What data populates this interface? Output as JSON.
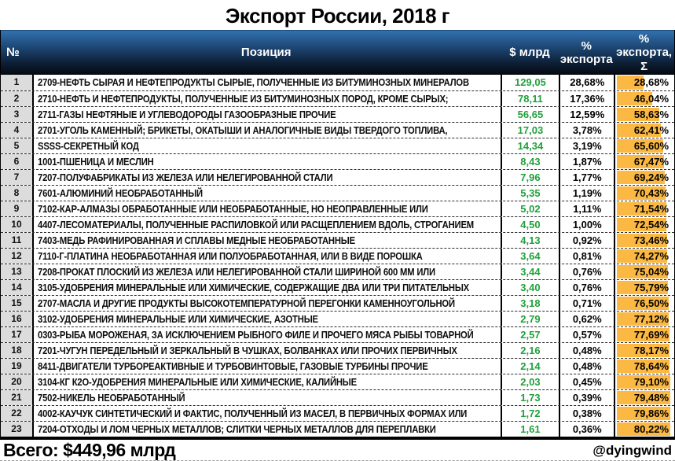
{
  "title": "Экспорт России, 2018 г",
  "colors": {
    "bar_orange": "#fbb843",
    "value_green": "#22a03c",
    "header_gradient_top": "#2f72b4",
    "header_gradient_bottom": "#05090f",
    "num_column_bg": "#dcdcdc"
  },
  "table": {
    "columns": [
      "№",
      "Позиция",
      "$ млрд",
      "% экспорта",
      "% экспорта, Σ"
    ],
    "rows": [
      {
        "n": "1",
        "position": "2709-НЕФТЬ СЫРАЯ И НЕФТЕПРОДУКТЫ СЫРЫЕ, ПОЛУЧЕННЫЕ ИЗ БИТУМИНОЗНЫХ МИНЕРАЛОВ",
        "usd": "129,05",
        "pct": "28,68%",
        "cum": "28,68%",
        "cum_num": 28.68
      },
      {
        "n": "2",
        "position": "2710-НЕФТЬ И НЕФТЕПРОДУКТЫ, ПОЛУЧЕННЫЕ ИЗ БИТУМИНОЗНЫХ ПОРОД, КРОМЕ СЫРЫХ;",
        "usd": "78,11",
        "pct": "17,36%",
        "cum": "46,04%",
        "cum_num": 46.04
      },
      {
        "n": "3",
        "position": "2711-ГАЗЫ НЕФТЯНЫЕ И УГЛЕВОДОРОДЫ ГАЗООБРАЗНЫЕ ПРОЧИЕ",
        "usd": "56,65",
        "pct": "12,59%",
        "cum": "58,63%",
        "cum_num": 58.63
      },
      {
        "n": "4",
        "position": "2701-УГОЛЬ КАМЕННЫЙ; БРИКЕТЫ, ОКАТЫШИ И АНАЛОГИЧНЫЕ ВИДЫ ТВЕРДОГО ТОПЛИВА,",
        "usd": "17,03",
        "pct": "3,78%",
        "cum": "62,41%",
        "cum_num": 62.41
      },
      {
        "n": "5",
        "position": "SSSS-СЕКРЕТНЫЙ КОД",
        "usd": "14,34",
        "pct": "3,19%",
        "cum": "65,60%",
        "cum_num": 65.6
      },
      {
        "n": "6",
        "position": "1001-ПШЕНИЦА И МЕСЛИН",
        "usd": "8,43",
        "pct": "1,87%",
        "cum": "67,47%",
        "cum_num": 67.47
      },
      {
        "n": "7",
        "position": "7207-ПОЛУФАБРИКАТЫ ИЗ ЖЕЛЕЗА ИЛИ НЕЛЕГИРОВАННОЙ СТАЛИ",
        "usd": "7,96",
        "pct": "1,77%",
        "cum": "69,24%",
        "cum_num": 69.24
      },
      {
        "n": "8",
        "position": "7601-АЛЮМИНИЙ НЕОБРАБОТАННЫЙ",
        "usd": "5,35",
        "pct": "1,19%",
        "cum": "70,43%",
        "cum_num": 70.43
      },
      {
        "n": "9",
        "position": "7102-КАР-АЛМАЗЫ ОБРАБОТАННЫЕ ИЛИ НЕОБРАБОТАННЫЕ, НО НЕОПРАВЛЕННЫЕ ИЛИ",
        "usd": "5,02",
        "pct": "1,11%",
        "cum": "71,54%",
        "cum_num": 71.54
      },
      {
        "n": "10",
        "position": "4407-ЛЕСОМАТЕРИАЛЫ, ПОЛУЧЕННЫЕ РАСПИЛОВКОЙ ИЛИ РАСЩЕПЛЕНИЕМ ВДОЛЬ, СТРОГАНИЕМ",
        "usd": "4,50",
        "pct": "1,00%",
        "cum": "72,54%",
        "cum_num": 72.54
      },
      {
        "n": "11",
        "position": "7403-МЕДЬ РАФИНИРОВАННАЯ И СПЛАВЫ МЕДНЫЕ НЕОБРАБОТАННЫЕ",
        "usd": "4,13",
        "pct": "0,92%",
        "cum": "73,46%",
        "cum_num": 73.46
      },
      {
        "n": "12",
        "position": "7110-Г-ПЛАТИНА НЕОБРАБОТАННАЯ ИЛИ ПОЛУОБРАБОТАННАЯ, ИЛИ В ВИДЕ ПОРОШКА",
        "usd": "3,64",
        "pct": "0,81%",
        "cum": "74,27%",
        "cum_num": 74.27
      },
      {
        "n": "13",
        "position": "7208-ПРОКАТ ПЛОСКИЙ ИЗ ЖЕЛЕЗА ИЛИ НЕЛЕГИРОВАННОЙ СТАЛИ ШИРИНОЙ 600 ММ ИЛИ",
        "usd": "3,44",
        "pct": "0,76%",
        "cum": "75,04%",
        "cum_num": 75.04
      },
      {
        "n": "14",
        "position": "3105-УДОБРЕНИЯ МИНЕРАЛЬНЫЕ ИЛИ ХИМИЧЕСКИЕ, СОДЕРЖАЩИЕ ДВА ИЛИ ТРИ ПИТАТЕЛЬНЫХ",
        "usd": "3,40",
        "pct": "0,76%",
        "cum": "75,79%",
        "cum_num": 75.79
      },
      {
        "n": "15",
        "position": "2707-МАСЛА И ДРУГИЕ ПРОДУКТЫ ВЫСОКОТЕМПЕРАТУРНОЙ ПЕРЕГОНКИ КАМЕННОУГОЛЬНОЙ",
        "usd": "3,18",
        "pct": "0,71%",
        "cum": "76,50%",
        "cum_num": 76.5
      },
      {
        "n": "16",
        "position": "3102-УДОБРЕНИЯ МИНЕРАЛЬНЫЕ ИЛИ ХИМИЧЕСКИЕ, АЗОТНЫЕ",
        "usd": "2,79",
        "pct": "0,62%",
        "cum": "77,12%",
        "cum_num": 77.12
      },
      {
        "n": "17",
        "position": "0303-РЫБА МОРОЖЕНАЯ, ЗА ИСКЛЮЧЕНИЕМ РЫБНОГО ФИЛЕ И ПРОЧЕГО МЯСА РЫБЫ ТОВАРНОЙ",
        "usd": "2,57",
        "pct": "0,57%",
        "cum": "77,69%",
        "cum_num": 77.69
      },
      {
        "n": "18",
        "position": "7201-ЧУГУН ПЕРЕДЕЛЬНЫЙ И ЗЕРКАЛЬНЫЙ В ЧУШКАХ, БОЛВАНКАХ ИЛИ ПРОЧИХ ПЕРВИЧНЫХ",
        "usd": "2,16",
        "pct": "0,48%",
        "cum": "78,17%",
        "cum_num": 78.17
      },
      {
        "n": "19",
        "position": "8411-ДВИГАТЕЛИ ТУРБОРЕАКТИВНЫЕ И ТУРБОВИНТОВЫЕ, ГАЗОВЫЕ ТУРБИНЫ ПРОЧИЕ",
        "usd": "2,14",
        "pct": "0,48%",
        "cum": "78,64%",
        "cum_num": 78.64
      },
      {
        "n": "20",
        "position": "3104-КГ К2О-УДОБРЕНИЯ МИНЕРАЛЬНЫЕ ИЛИ ХИМИЧЕСКИЕ, КАЛИЙНЫЕ",
        "usd": "2,03",
        "pct": "0,45%",
        "cum": "79,10%",
        "cum_num": 79.1
      },
      {
        "n": "21",
        "position": "7502-НИКЕЛЬ НЕОБРАБОТАННЫЙ",
        "usd": "1,73",
        "pct": "0,39%",
        "cum": "79,48%",
        "cum_num": 79.48
      },
      {
        "n": "22",
        "position": "4002-КАУЧУК СИНТЕТИЧЕСКИЙ И ФАКТИС, ПОЛУЧЕННЫЙ ИЗ МАСЕЛ, В ПЕРВИЧНЫХ ФОРМАХ ИЛИ",
        "usd": "1,72",
        "pct": "0,38%",
        "cum": "79,86%",
        "cum_num": 79.86
      },
      {
        "n": "23",
        "position": "7204-ОТХОДЫ И ЛОМ ЧЕРНЫХ МЕТАЛЛОВ; СЛИТКИ ЧЕРНЫХ МЕТАЛЛОВ ДЛЯ ПЕРЕПЛАВКИ",
        "usd": "1,61",
        "pct": "0,36%",
        "cum": "80,22%",
        "cum_num": 80.22
      }
    ]
  },
  "footer": {
    "total": "Всего: $449,96 млрд",
    "handle": "@dyingwind"
  },
  "chart_data": {
    "type": "table",
    "title": "Экспорт России, 2018 г",
    "columns": [
      "№",
      "Позиция",
      "$ млрд",
      "% экспорта",
      "% экспорта, Σ"
    ],
    "rows": [
      [
        1,
        "2709-НЕФТЬ СЫРАЯ И НЕФТЕПРОДУКТЫ СЫРЫЕ, ПОЛУЧЕННЫЕ ИЗ БИТУМИНОЗНЫХ МИНЕРАЛОВ",
        129.05,
        28.68,
        28.68
      ],
      [
        2,
        "2710-НЕФТЬ И НЕФТЕПРОДУКТЫ, ПОЛУЧЕННЫЕ ИЗ БИТУМИНОЗНЫХ ПОРОД, КРОМЕ СЫРЫХ;",
        78.11,
        17.36,
        46.04
      ],
      [
        3,
        "2711-ГАЗЫ НЕФТЯНЫЕ И УГЛЕВОДОРОДЫ ГАЗООБРАЗНЫЕ ПРОЧИЕ",
        56.65,
        12.59,
        58.63
      ],
      [
        4,
        "2701-УГОЛЬ КАМЕННЫЙ; БРИКЕТЫ, ОКАТЫШИ И АНАЛОГИЧНЫЕ ВИДЫ ТВЕРДОГО ТОПЛИВА,",
        17.03,
        3.78,
        62.41
      ],
      [
        5,
        "SSSS-СЕКРЕТНЫЙ КОД",
        14.34,
        3.19,
        65.6
      ],
      [
        6,
        "1001-ПШЕНИЦА И МЕСЛИН",
        8.43,
        1.87,
        67.47
      ],
      [
        7,
        "7207-ПОЛУФАБРИКАТЫ ИЗ ЖЕЛЕЗА ИЛИ НЕЛЕГИРОВАННОЙ СТАЛИ",
        7.96,
        1.77,
        69.24
      ],
      [
        8,
        "7601-АЛЮМИНИЙ НЕОБРАБОТАННЫЙ",
        5.35,
        1.19,
        70.43
      ],
      [
        9,
        "7102-КАР-АЛМАЗЫ ОБРАБОТАННЫЕ ИЛИ НЕОБРАБОТАННЫЕ, НО НЕОПРАВЛЕННЫЕ ИЛИ",
        5.02,
        1.11,
        71.54
      ],
      [
        10,
        "4407-ЛЕСОМАТЕРИАЛЫ, ПОЛУЧЕННЫЕ РАСПИЛОВКОЙ ИЛИ РАСЩЕПЛЕНИЕМ ВДОЛЬ, СТРОГАНИЕМ",
        4.5,
        1.0,
        72.54
      ],
      [
        11,
        "7403-МЕДЬ РАФИНИРОВАННАЯ И СПЛАВЫ МЕДНЫЕ НЕОБРАБОТАННЫЕ",
        4.13,
        0.92,
        73.46
      ],
      [
        12,
        "7110-Г-ПЛАТИНА НЕОБРАБОТАННАЯ ИЛИ ПОЛУОБРАБОТАННАЯ, ИЛИ В ВИДЕ ПОРОШКА",
        3.64,
        0.81,
        74.27
      ],
      [
        13,
        "7208-ПРОКАТ ПЛОСКИЙ ИЗ ЖЕЛЕЗА ИЛИ НЕЛЕГИРОВАННОЙ СТАЛИ ШИРИНОЙ 600 ММ ИЛИ",
        3.44,
        0.76,
        75.04
      ],
      [
        14,
        "3105-УДОБРЕНИЯ МИНЕРАЛЬНЫЕ ИЛИ ХИМИЧЕСКИЕ, СОДЕРЖАЩИЕ ДВА ИЛИ ТРИ ПИТАТЕЛЬНЫХ",
        3.4,
        0.76,
        75.79
      ],
      [
        15,
        "2707-МАСЛА И ДРУГИЕ ПРОДУКТЫ ВЫСОКОТЕМПЕРАТУРНОЙ ПЕРЕГОНКИ КАМЕННОУГОЛЬНОЙ",
        3.18,
        0.71,
        76.5
      ],
      [
        16,
        "3102-УДОБРЕНИЯ МИНЕРАЛЬНЫЕ ИЛИ ХИМИЧЕСКИЕ, АЗОТНЫЕ",
        2.79,
        0.62,
        77.12
      ],
      [
        17,
        "0303-РЫБА МОРОЖЕНАЯ, ЗА ИСКЛЮЧЕНИЕМ РЫБНОГО ФИЛЕ И ПРОЧЕГО МЯСА РЫБЫ ТОВАРНОЙ",
        2.57,
        0.57,
        77.69
      ],
      [
        18,
        "7201-ЧУГУН ПЕРЕДЕЛЬНЫЙ И ЗЕРКАЛЬНЫЙ В ЧУШКАХ, БОЛВАНКАХ ИЛИ ПРОЧИХ ПЕРВИЧНЫХ",
        2.16,
        0.48,
        78.17
      ],
      [
        19,
        "8411-ДВИГАТЕЛИ ТУРБОРЕАКТИВНЫЕ И ТУРБОВИНТОВЫЕ, ГАЗОВЫЕ ТУРБИНЫ ПРОЧИЕ",
        2.14,
        0.48,
        78.64
      ],
      [
        20,
        "3104-КГ К2О-УДОБРЕНИЯ МИНЕРАЛЬНЫЕ ИЛИ ХИМИЧЕСКИЕ, КАЛИЙНЫЕ",
        2.03,
        0.45,
        79.1
      ],
      [
        21,
        "7502-НИКЕЛЬ НЕОБРАБОТАННЫЙ",
        1.73,
        0.39,
        79.48
      ],
      [
        22,
        "4002-КАУЧУК СИНТЕТИЧЕСКИЙ И ФАКТИС, ПОЛУЧЕННЫЙ ИЗ МАСЕЛ, В ПЕРВИЧНЫХ ФОРМАХ ИЛИ",
        1.72,
        0.38,
        79.86
      ],
      [
        23,
        "7204-ОТХОДЫ И ЛОМ ЧЕРНЫХ МЕТАЛЛОВ; СЛИТКИ ЧЕРНЫХ МЕТАЛЛОВ ДЛЯ ПЕРЕПЛАВКИ",
        1.61,
        0.36,
        80.22
      ]
    ],
    "total_usd_billion": 449.96,
    "cumulative_bar": {
      "style": "data-bar",
      "color": "#fbb843",
      "min_value": 28.68,
      "max_value": 80.22
    }
  }
}
